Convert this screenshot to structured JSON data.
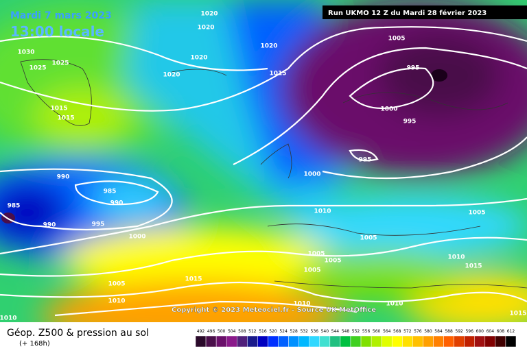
{
  "header": {
    "date": "Mardi 7 mars 2023",
    "time": "13:00 locale",
    "run": "Run UKMO 12 Z du Mardi 28 février 2023"
  },
  "copyright": "Copyright © 2023 Meteociel.fr - Source UK MetOffice",
  "footer": {
    "title": "Géop. Z500 & pression au sol",
    "lead": "(+ 168h)"
  },
  "isobar_labels": [
    "1020",
    "1020",
    "1030",
    "1025",
    "1025",
    "1020",
    "1020",
    "1005",
    "1020",
    "1015",
    "995",
    "1015",
    "1015",
    "1000",
    "995",
    "995",
    "1000",
    "990",
    "985",
    "990",
    "985",
    "990",
    "995",
    "1010",
    "1005",
    "1000",
    "1005",
    "1005",
    "1005",
    "1010",
    "1015",
    "1005",
    "1015",
    "1005",
    "1010",
    "1010",
    "1010",
    "1010",
    "1015"
  ],
  "legend": {
    "labels": [
      492,
      496,
      500,
      504,
      508,
      512,
      516,
      520,
      524,
      528,
      532,
      536,
      540,
      544,
      548,
      552,
      556,
      560,
      564,
      568,
      572,
      576,
      580,
      584,
      588,
      592,
      596,
      600,
      604,
      608,
      612
    ],
    "colors": [
      "#2a0a2a",
      "#4a0f4a",
      "#6a106a",
      "#8a1a8a",
      "#50207a",
      "#1a1a8a",
      "#0000c0",
      "#0030ff",
      "#0060ff",
      "#0090ff",
      "#00b8ff",
      "#30d8ff",
      "#40e0d0",
      "#20c080",
      "#00c040",
      "#40d020",
      "#80e000",
      "#b0f000",
      "#e0ff00",
      "#ffff00",
      "#ffe000",
      "#ffc000",
      "#ffa000",
      "#ff8000",
      "#ff6000",
      "#e04000",
      "#c02000",
      "#a01010",
      "#800000",
      "#400000",
      "#000000"
    ]
  }
}
